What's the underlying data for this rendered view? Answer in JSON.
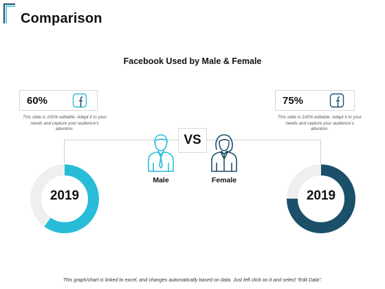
{
  "slide": {
    "title": "Comparison",
    "subtitle": "Facebook Used by Male & Female",
    "vs_label": "VS",
    "footer": "This graph/chart is linked to excel, and changes automatically based on data. Just left click on it and select “Edit Data”."
  },
  "left": {
    "percent_label": "60%",
    "percent_value": 60,
    "note": "This slide is 100% editable. Adapt it to your needs and capture your audience’s attention.",
    "year": "2019",
    "accent_color": "#29bcd8",
    "icon": "facebook-icon"
  },
  "right": {
    "percent_label": "75%",
    "percent_value": 75,
    "note": "This slide is 100% editable. Adapt it to your needs and capture your audience’s attention.",
    "year": "2019",
    "accent_color": "#1b4f6a",
    "icon": "facebook-icon"
  },
  "people": {
    "male_label": "Male",
    "female_label": "Female",
    "male_icon": "male-person-icon",
    "female_icon": "female-person-icon"
  },
  "colors": {
    "ring_track": "#efefef",
    "corner_accent": "#29bcd8"
  }
}
